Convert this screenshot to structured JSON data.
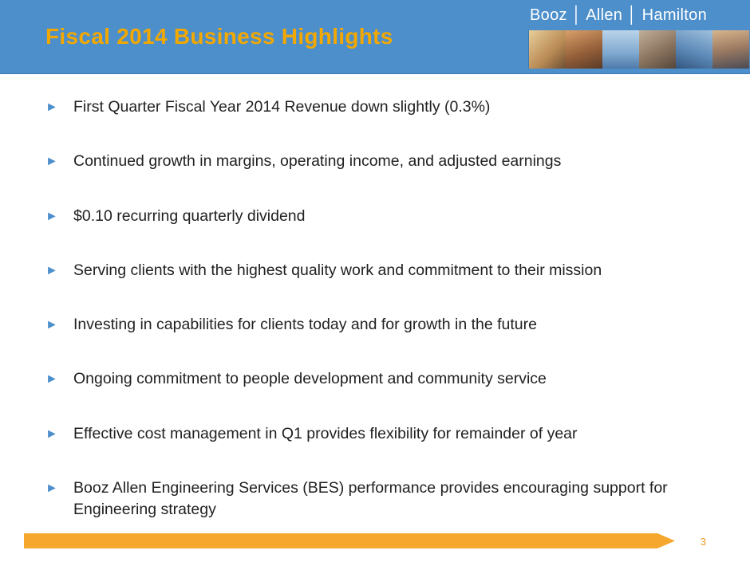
{
  "slide": {
    "title": "Fiscal 2014 Business Highlights",
    "logo_text": "Booz │ Allen │ Hamilton",
    "bullets": [
      "First Quarter Fiscal Year 2014 Revenue down slightly (0.3%)",
      "Continued growth in margins, operating income, and adjusted earnings",
      "$0.10 recurring quarterly dividend",
      "Serving clients with the highest quality work and commitment to their mission",
      "Investing in capabilities for clients today and for growth in the future",
      "Ongoing commitment to people development and community service",
      "Effective cost management in Q1 provides flexibility for remainder of year",
      "Booz Allen Engineering Services (BES) performance provides encouraging support for Engineering strategy"
    ],
    "page_number": "3",
    "colors": {
      "header_blue": "#4d8fcb",
      "title_orange": "#f3a800",
      "bullet_arrow_blue": "#4d8fcb",
      "footer_orange": "#f5a82d",
      "page_number_orange": "#e8991c",
      "body_text": "#212121",
      "logo_text_white": "#ffffff"
    }
  }
}
